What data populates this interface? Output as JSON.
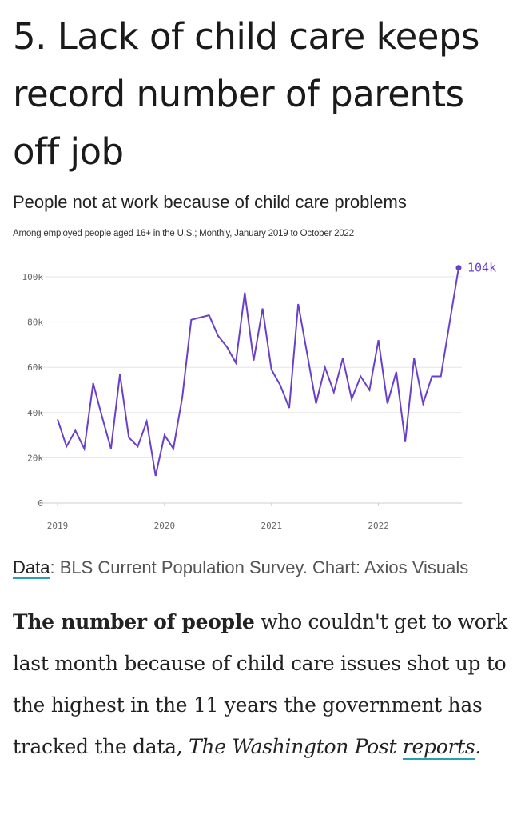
{
  "headline": "5. Lack of child care keeps record number of parents off job",
  "chart_data": {
    "type": "line",
    "title": "People not at work because of child care problems",
    "subtitle": "Among employed people aged 16+ in the U.S.; Monthly, January 2019 to October 2022",
    "x_tick_labels": [
      "2019",
      "2020",
      "2021",
      "2022"
    ],
    "y_tick_labels": [
      "0",
      "20k",
      "40k",
      "60k",
      "80k",
      "100k"
    ],
    "y_ticks": [
      0,
      20,
      40,
      60,
      80,
      100
    ],
    "ylim": [
      0,
      100
    ],
    "y_unit": "thousands",
    "grid": true,
    "line_color": "#6a3fc9",
    "series": [
      {
        "values": [
          37,
          25,
          32,
          24,
          53,
          38,
          24,
          57,
          29,
          25,
          36,
          12,
          30,
          24,
          47,
          81,
          82,
          83,
          74,
          69,
          62,
          93,
          63,
          86,
          59,
          52,
          42,
          88,
          66,
          44,
          60,
          49,
          64,
          46,
          56,
          50,
          72,
          44,
          58,
          27,
          64,
          44,
          56,
          56,
          80,
          104
        ]
      }
    ],
    "end_label": "104k"
  },
  "source": {
    "label": "Data",
    "text": ": BLS Current Population Survey. Chart: Axios Visuals"
  },
  "body": {
    "bold": "The number of people",
    "text": " who couldn't get to work last month because of child care issues shot up to the highest in the 11 years the government has tracked the data, ",
    "italic1": "The Washington Post",
    "space": " ",
    "link": "reports",
    "italic2": "."
  }
}
